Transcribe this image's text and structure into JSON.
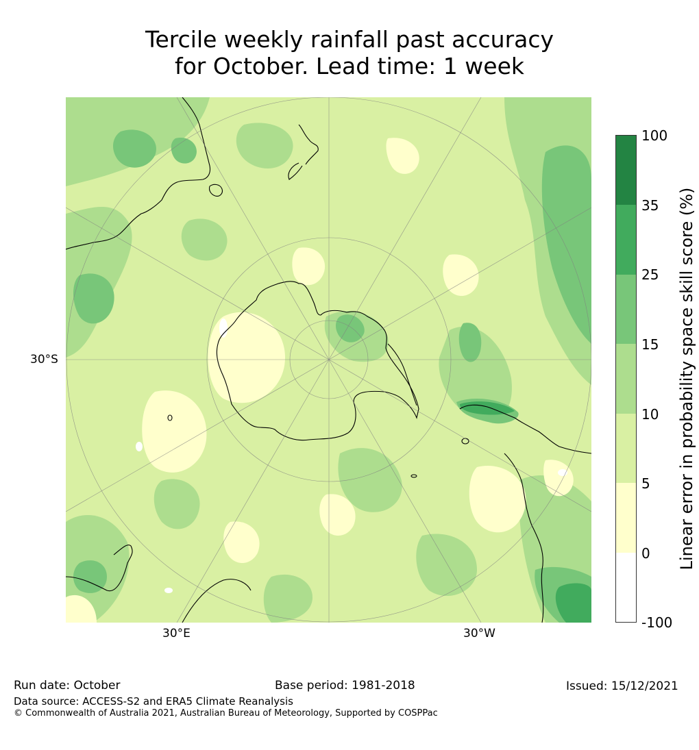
{
  "title": {
    "line1": "Tercile weekly rainfall past accuracy",
    "line2": "for October. Lead time: 1 week"
  },
  "map": {
    "projection": "south-polar-stereographic",
    "lat_label": "30°S",
    "lon_labels": {
      "east": "30°E",
      "west": "30°W"
    },
    "colors": {
      "lt5": "#ffffcc",
      "5to10": "#d9f0a3",
      "10to15": "#addd8e",
      "15to25": "#78c679",
      "25to35": "#41ab5d",
      "35to100": "#238443",
      "coast": "#000000",
      "grid": "#808080"
    }
  },
  "colorbar": {
    "label": "Linear error in probability space skill score (%)",
    "ticks": [
      "100",
      "35",
      "25",
      "15",
      "10",
      "5",
      "0",
      "-100"
    ],
    "segments": [
      {
        "range": "35 to 100",
        "color": "#238443"
      },
      {
        "range": "25 to 35",
        "color": "#41ab5d"
      },
      {
        "range": "15 to 25",
        "color": "#78c679"
      },
      {
        "range": "10 to 15",
        "color": "#addd8e"
      },
      {
        "range": "5 to 10",
        "color": "#d9f0a3"
      },
      {
        "range": "0 to 5",
        "color": "#ffffcc"
      },
      {
        "range": "-100 to 0",
        "color": "#ffffff"
      }
    ]
  },
  "footer": {
    "run_date": "Run date: October",
    "base_period": "Base period: 1981-2018",
    "issued": "Issued: 15/12/2021",
    "data_source": "Data source: ACCESS-S2 and ERA5 Climate Reanalysis",
    "copyright": "© Commonwealth of Australia 2021, Australian Bureau of Meteorology, Supported by COSPPac"
  }
}
